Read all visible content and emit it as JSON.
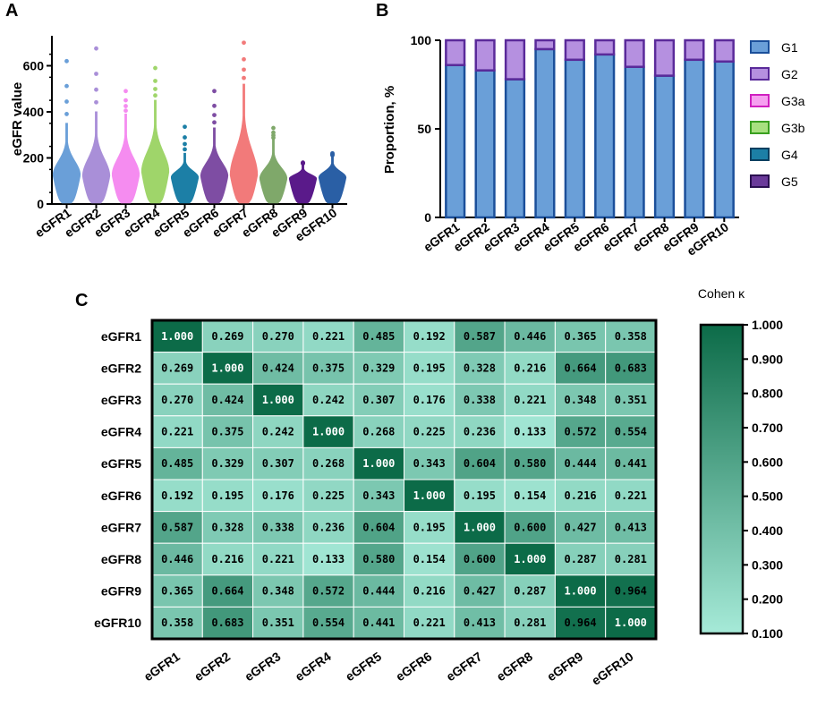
{
  "panels": {
    "a": "A",
    "b": "B",
    "c": "C"
  },
  "chart_data": [
    {
      "type": "violin",
      "panel": "A",
      "ylabel": "eGFR value",
      "ylim": [
        0,
        730
      ],
      "yticks": [
        0,
        200,
        400,
        600
      ],
      "categories": [
        "eGFR1",
        "eGFR2",
        "eGFR3",
        "eGFR4",
        "eGFR5",
        "eGFR6",
        "eGFR7",
        "eGFR8",
        "eGFR9",
        "eGFR10"
      ],
      "colors": [
        "#6a9fd8",
        "#a98fd8",
        "#f58cf0",
        "#9fd56a",
        "#1c7fa6",
        "#7e4da3",
        "#f27a7a",
        "#7fa86a",
        "#5a1a8a",
        "#2a5fa5"
      ],
      "medians": [
        125,
        120,
        125,
        140,
        115,
        120,
        125,
        110,
        110,
        115
      ],
      "body_max": [
        350,
        400,
        390,
        450,
        220,
        330,
        520,
        280,
        175,
        210
      ],
      "outlier_max": [
        620,
        675,
        490,
        590,
        335,
        490,
        700,
        330,
        180,
        220
      ]
    },
    {
      "type": "stacked-bar",
      "panel": "B",
      "ylabel": "Proportion, %",
      "ylim": [
        0,
        100
      ],
      "yticks": [
        0,
        50,
        100
      ],
      "categories": [
        "eGFR1",
        "eGFR2",
        "eGFR3",
        "eGFR4",
        "eGFR5",
        "eGFR6",
        "eGFR7",
        "eGFR8",
        "eGFR9",
        "eGFR10"
      ],
      "series": [
        {
          "name": "G1",
          "color": "#6a9fd8",
          "edge": "#1b4f9a",
          "values": [
            86,
            83,
            78,
            95,
            89,
            92,
            85,
            80,
            89,
            88
          ]
        },
        {
          "name": "G2",
          "color": "#b590e0",
          "edge": "#5a2a9a",
          "values": [
            14,
            17,
            22,
            5,
            11,
            8,
            15,
            20,
            11,
            12
          ]
        },
        {
          "name": "G3a",
          "color": "#f6a0f0",
          "edge": "#d020c0",
          "values": [
            0,
            0,
            0,
            0,
            0,
            0,
            0,
            0,
            0,
            0
          ]
        },
        {
          "name": "G3b",
          "color": "#a8e080",
          "edge": "#3aa020",
          "values": [
            0,
            0,
            0,
            0,
            0,
            0,
            0,
            0,
            0,
            0
          ]
        },
        {
          "name": "G4",
          "color": "#1c7fa6",
          "edge": "#0a3f60",
          "values": [
            0,
            0,
            0,
            0,
            0,
            0,
            0,
            0,
            0,
            0
          ]
        },
        {
          "name": "G5",
          "color": "#6a3a9a",
          "edge": "#2a1050",
          "values": [
            0,
            0,
            0,
            0,
            0,
            0,
            0,
            0,
            0,
            0
          ]
        }
      ]
    },
    {
      "type": "heatmap",
      "panel": "C",
      "colorbar_title": "Cohen κ",
      "colorbar_ticks": [
        "1.000",
        "0.900",
        "0.800",
        "0.700",
        "0.600",
        "0.500",
        "0.400",
        "0.300",
        "0.200",
        "0.100"
      ],
      "vmin": 0.1,
      "vmax": 1.0,
      "color_low": "#a6ead8",
      "color_high": "#0c6b48",
      "labels": [
        "eGFR1",
        "eGFR2",
        "eGFR3",
        "eGFR4",
        "eGFR5",
        "eGFR6",
        "eGFR7",
        "eGFR8",
        "eGFR9",
        "eGFR10"
      ],
      "matrix": [
        [
          "1.000",
          "0.269",
          "0.270",
          "0.221",
          "0.485",
          "0.192",
          "0.587",
          "0.446",
          "0.365",
          "0.358"
        ],
        [
          "0.269",
          "1.000",
          "0.424",
          "0.375",
          "0.329",
          "0.195",
          "0.328",
          "0.216",
          "0.664",
          "0.683"
        ],
        [
          "0.270",
          "0.424",
          "1.000",
          "0.242",
          "0.307",
          "0.176",
          "0.338",
          "0.221",
          "0.348",
          "0.351"
        ],
        [
          "0.221",
          "0.375",
          "0.242",
          "1.000",
          "0.268",
          "0.225",
          "0.236",
          "0.133",
          "0.572",
          "0.554"
        ],
        [
          "0.485",
          "0.329",
          "0.307",
          "0.268",
          "1.000",
          "0.343",
          "0.604",
          "0.580",
          "0.444",
          "0.441"
        ],
        [
          "0.192",
          "0.195",
          "0.176",
          "0.225",
          "0.343",
          "1.000",
          "0.195",
          "0.154",
          "0.216",
          "0.221"
        ],
        [
          "0.587",
          "0.328",
          "0.338",
          "0.236",
          "0.604",
          "0.195",
          "1.000",
          "0.600",
          "0.427",
          "0.413"
        ],
        [
          "0.446",
          "0.216",
          "0.221",
          "0.133",
          "0.580",
          "0.154",
          "0.600",
          "1.000",
          "0.287",
          "0.281"
        ],
        [
          "0.365",
          "0.664",
          "0.348",
          "0.572",
          "0.444",
          "0.216",
          "0.427",
          "0.287",
          "1.000",
          "0.964"
        ],
        [
          "0.358",
          "0.683",
          "0.351",
          "0.554",
          "0.441",
          "0.221",
          "0.413",
          "0.281",
          "0.964",
          "1.000"
        ]
      ]
    }
  ]
}
